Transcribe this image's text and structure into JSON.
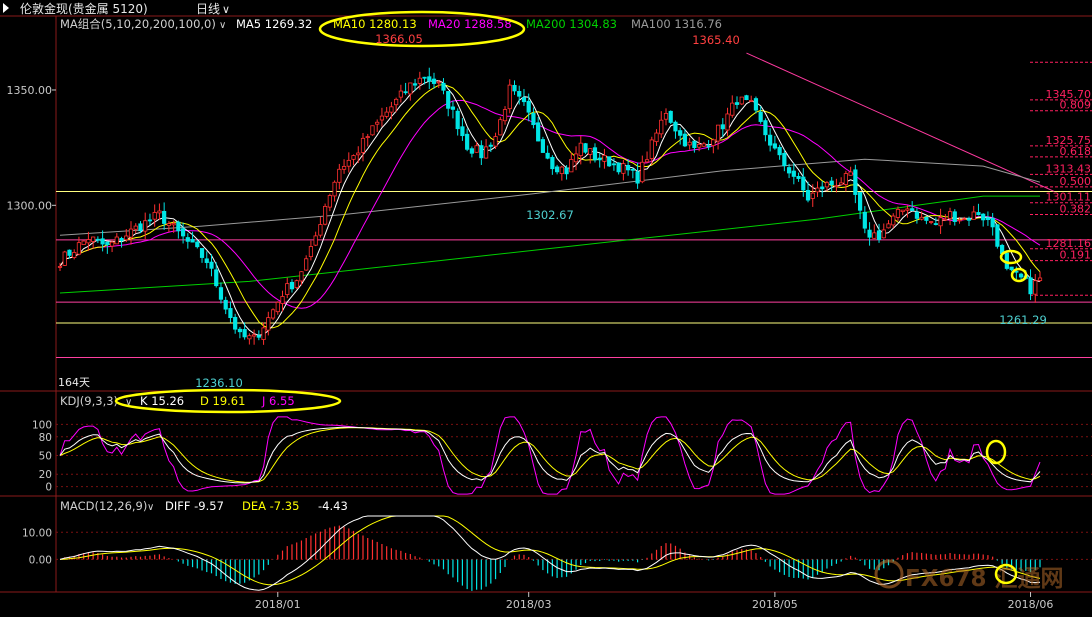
{
  "header": {
    "title": "伦敦金现(贵金属 5120)",
    "period": "日线",
    "dropdown_glyph": "∨"
  },
  "colors": {
    "bg": "#000000",
    "up": "#ff3030",
    "down": "#00e5e5",
    "ma5": "#ffffff",
    "ma10": "#ffff00",
    "ma20": "#ff00ff",
    "ma200": "#00d000",
    "ma100": "#9a9a9a",
    "grid": "#7a1010",
    "fib": "#ff2060",
    "annot": "#ffff00",
    "trend": "#ff3aa0",
    "axis_text": "#c8c8c8"
  },
  "main_legend": {
    "name": "MA组合(5,10,20,200,100,0)",
    "ma5": "MA5 1269.32",
    "ma10": "MA10 1280.13",
    "ma20": "MA20 1288.58",
    "ma200": "MA200 1304.83",
    "ma100": "MA100 1316.76"
  },
  "kdj_legend": {
    "name": "KDJ(9,3,3)",
    "k": "K 15.26",
    "d": "D 19.61",
    "j": "J 6.55"
  },
  "macd_legend": {
    "name": "MACD(12,26,9)",
    "diff": "DIFF -9.57",
    "dea": "DEA -7.35",
    "macd": "-4.43"
  },
  "chart_data": [
    {
      "type": "candlestick",
      "panel": "price",
      "y_ticks": [
        "1350.00",
        "1300.00"
      ],
      "ylim": [
        1226,
        1376
      ],
      "x_ticks": [
        "2018/01",
        "2018/03",
        "2018/05",
        "2018/06"
      ],
      "annotations": {
        "high_1": "1366.05",
        "high_2": "1365.40",
        "low_mid": "1302.67",
        "low_1": "1236.10",
        "low_recent": "1261.29",
        "days": "164天"
      },
      "fib_levels": [
        {
          "label": "1345.70",
          "value": 1345.7
        },
        {
          "label": "0.809",
          "value": 1341.0
        },
        {
          "label": "1325.75",
          "value": 1325.75
        },
        {
          "label": "0.618",
          "value": 1321.0
        },
        {
          "label": "1313.43",
          "value": 1313.43
        },
        {
          "label": "0.500",
          "value": 1308.0
        },
        {
          "label": "1301.11",
          "value": 1301.11
        },
        {
          "label": "0.382",
          "value": 1296.0
        },
        {
          "label": "1281.16",
          "value": 1281.16
        },
        {
          "label": "0.191",
          "value": 1276.0
        }
      ],
      "hlines": [
        1306,
        1285,
        1258,
        1249,
        1234
      ],
      "anchors": [
        [
          0,
          1276
        ],
        [
          6,
          1286
        ],
        [
          10,
          1282
        ],
        [
          16,
          1290
        ],
        [
          21,
          1296
        ],
        [
          26,
          1286
        ],
        [
          31,
          1276
        ],
        [
          35,
          1256
        ],
        [
          38,
          1243
        ],
        [
          41,
          1242
        ],
        [
          44,
          1251
        ],
        [
          47,
          1262
        ],
        [
          50,
          1268
        ],
        [
          53,
          1280
        ],
        [
          56,
          1300
        ],
        [
          59,
          1316
        ],
        [
          62,
          1321
        ],
        [
          65,
          1330
        ],
        [
          68,
          1338
        ],
        [
          71,
          1345
        ],
        [
          74,
          1352
        ],
        [
          77,
          1356
        ],
        [
          80,
          1352
        ],
        [
          83,
          1340
        ],
        [
          86,
          1326
        ],
        [
          89,
          1322
        ],
        [
          92,
          1330
        ],
        [
          95,
          1350
        ],
        [
          98,
          1343
        ],
        [
          101,
          1329
        ],
        [
          104,
          1318
        ],
        [
          107,
          1315
        ],
        [
          110,
          1326
        ],
        [
          113,
          1321
        ],
        [
          116,
          1319
        ],
        [
          119,
          1316
        ],
        [
          122,
          1312
        ],
        [
          125,
          1326
        ],
        [
          128,
          1341
        ],
        [
          131,
          1330
        ],
        [
          134,
          1324
        ],
        [
          137,
          1328
        ],
        [
          140,
          1335
        ],
        [
          143,
          1346
        ],
        [
          146,
          1343
        ],
        [
          149,
          1331
        ],
        [
          152,
          1320
        ],
        [
          155,
          1313
        ],
        [
          158,
          1303
        ],
        [
          161,
          1308
        ],
        [
          164,
          1310
        ],
        [
          167,
          1312
        ],
        [
          170,
          1288
        ],
        [
          173,
          1287
        ],
        [
          176,
          1294
        ],
        [
          179,
          1300
        ],
        [
          182,
          1294
        ],
        [
          185,
          1292
        ],
        [
          188,
          1296
        ],
        [
          191,
          1294
        ],
        [
          194,
          1297
        ],
        [
          197,
          1291
        ],
        [
          200,
          1271
        ],
        [
          203,
          1268
        ],
        [
          205,
          1264
        ],
        [
          207,
          1268
        ]
      ],
      "ma200_line": [
        [
          0,
          1262
        ],
        [
          40,
          1267
        ],
        [
          80,
          1276
        ],
        [
          120,
          1285
        ],
        [
          160,
          1294
        ],
        [
          195,
          1304
        ],
        [
          207,
          1304
        ]
      ],
      "ma100_line": [
        [
          0,
          1287
        ],
        [
          30,
          1291
        ],
        [
          60,
          1296
        ],
        [
          100,
          1305
        ],
        [
          140,
          1315
        ],
        [
          170,
          1320
        ],
        [
          195,
          1317
        ],
        [
          207,
          1310
        ]
      ],
      "trendline": [
        [
          145,
          1366
        ],
        [
          210,
          1306
        ]
      ]
    },
    {
      "type": "line",
      "panel": "kdj",
      "y_ticks": [
        "100",
        "80",
        "50",
        "20",
        "0"
      ],
      "ylim": [
        -15,
        115
      ],
      "series": [
        {
          "name": "K",
          "last": 15.26
        },
        {
          "name": "D",
          "last": 19.61
        },
        {
          "name": "J",
          "last": 6.55
        }
      ]
    },
    {
      "type": "bar",
      "panel": "macd",
      "y_ticks": [
        "10.00",
        "0.00"
      ],
      "ylim": [
        -12,
        16
      ],
      "series": [
        {
          "name": "DIFF",
          "last": -9.57
        },
        {
          "name": "DEA",
          "last": -7.35
        },
        {
          "name": "MACD",
          "last": -4.43
        }
      ]
    }
  ],
  "watermark": "FX678 汇通网"
}
